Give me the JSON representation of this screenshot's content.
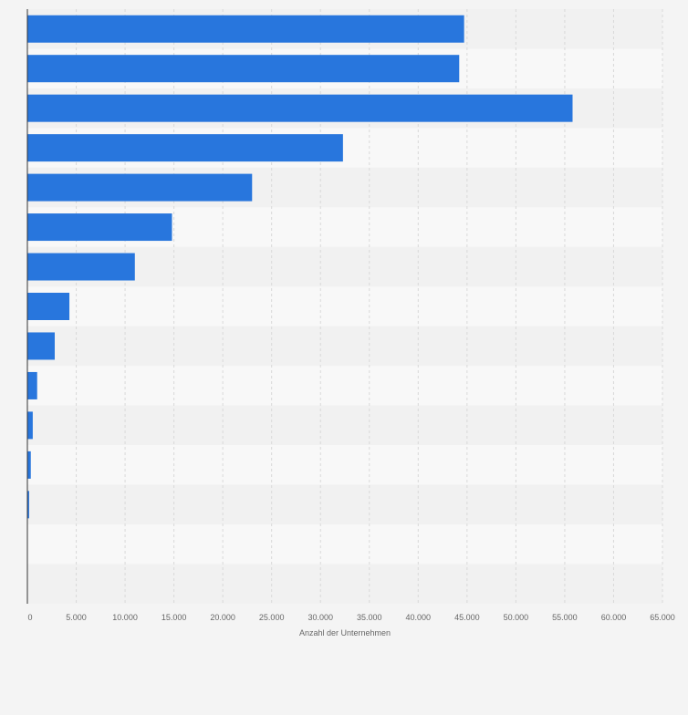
{
  "chart_data": {
    "type": "bar",
    "orientation": "horizontal",
    "categories": [
      "",
      "",
      "",
      "",
      "",
      "",
      "",
      "",
      "",
      "",
      "",
      "",
      "",
      "",
      ""
    ],
    "values": [
      44700,
      44200,
      55800,
      32300,
      23000,
      14800,
      11000,
      4300,
      2800,
      1000,
      550,
      350,
      180,
      0,
      0
    ],
    "xlabel": "Anzahl der Unternehmen",
    "xlim": [
      0,
      65000
    ],
    "xticks": [
      0,
      5000,
      10000,
      15000,
      20000,
      25000,
      30000,
      35000,
      40000,
      45000,
      50000,
      55000,
      60000,
      65000
    ],
    "xtick_labels": [
      "0",
      "5.000",
      "10.000",
      "15.000",
      "20.000",
      "25.000",
      "30.000",
      "35.000",
      "40.000",
      "45.000",
      "50.000",
      "55.000",
      "60.000",
      "65.000"
    ],
    "grid": true,
    "legend": "none",
    "colors": {
      "bar": "#2876dd",
      "band_dark": "#f1f1f1",
      "band_light": "#f8f8f8",
      "grid": "#d9d9d9",
      "axis": "#333333",
      "tick_text": "#666666"
    }
  }
}
